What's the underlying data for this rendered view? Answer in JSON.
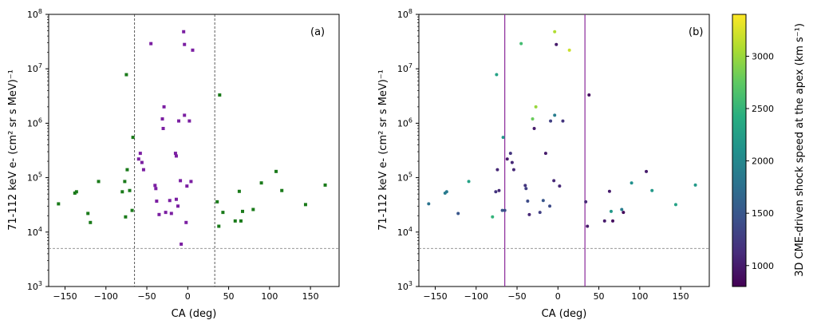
{
  "chart_data": [
    {
      "type": "scatter",
      "panel_label": "(a)",
      "xlabel": "CA (deg)",
      "ylabel": "71-112 keV e- (cm² sr s MeV)⁻¹",
      "xlim": [
        -170,
        185
      ],
      "ylim": [
        1000,
        100000000
      ],
      "yscale": "log",
      "xticks": [
        -150,
        -100,
        -50,
        0,
        50,
        100,
        150
      ],
      "yticks": [
        {
          "value": 1000,
          "base": "10",
          "exp": "3"
        },
        {
          "value": 10000,
          "base": "10",
          "exp": "4"
        },
        {
          "value": 100000,
          "base": "10",
          "exp": "5"
        },
        {
          "value": 1000000,
          "base": "10",
          "exp": "6"
        },
        {
          "value": 10000000,
          "base": "10",
          "exp": "7"
        },
        {
          "value": 100000000,
          "base": "10",
          "exp": "8"
        }
      ],
      "vlines": [
        -65,
        33
      ],
      "vline_style": "dashed",
      "vline_color": "#333333",
      "hline": 5000,
      "colors": {
        "outside": "#1a7a1a",
        "inside": "#7b1fa2"
      },
      "series": [
        {
          "group": "outside",
          "x": [
            -158,
            -138,
            -136,
            -122,
            -119,
            -109,
            -80,
            -77,
            -76,
            -75,
            -74,
            -71,
            -68,
            -67,
            36,
            38,
            39,
            43,
            58,
            63,
            65,
            67,
            80,
            90,
            108,
            115,
            144,
            168
          ],
          "y": [
            33000,
            52000,
            55000,
            22000,
            15000,
            85000,
            55000,
            85000,
            19000,
            7800000,
            140000,
            58000,
            25000,
            550000,
            36000,
            12800,
            3300000,
            23000,
            16000,
            56000,
            16000,
            24000,
            26000,
            80000,
            130000,
            58000,
            32000,
            73000
          ]
        },
        {
          "group": "inside",
          "x": [
            -60,
            -58,
            -56,
            -54,
            -45,
            -40,
            -39,
            -38,
            -35,
            -31,
            -30,
            -29,
            -27,
            -22,
            -20,
            -15,
            -14,
            -14,
            -12,
            -11,
            -9,
            -8,
            -5,
            -4,
            -4,
            -2,
            -1,
            2,
            4,
            6
          ],
          "y": [
            220000,
            280000,
            190000,
            140000,
            29000000,
            72000,
            63000,
            37000,
            21000,
            1200000,
            800000,
            2000000,
            23000,
            38000,
            22000,
            280000,
            250000,
            40000,
            30000,
            1100000,
            88000,
            6000,
            48000000,
            1400000,
            28000000,
            15000,
            70000,
            1100000,
            85000,
            22000000
          ]
        }
      ]
    },
    {
      "type": "scatter",
      "panel_label": "(b)",
      "xlabel": "CA (deg)",
      "ylabel": "71-112 keV e- (cm² sr s MeV)⁻¹",
      "xlim": [
        -170,
        185
      ],
      "ylim": [
        1000,
        100000000
      ],
      "yscale": "log",
      "xticks": [
        -150,
        -100,
        -50,
        0,
        50,
        100,
        150
      ],
      "yticks": [
        {
          "value": 1000,
          "base": "10",
          "exp": "3"
        },
        {
          "value": 10000,
          "base": "10",
          "exp": "4"
        },
        {
          "value": 100000,
          "base": "10",
          "exp": "5"
        },
        {
          "value": 1000000,
          "base": "10",
          "exp": "6"
        },
        {
          "value": 10000000,
          "base": "10",
          "exp": "7"
        },
        {
          "value": 100000000,
          "base": "10",
          "exp": "8"
        }
      ],
      "vlines": [
        -65,
        33
      ],
      "vline_style": "solid",
      "vline_color": "#8a2a9a",
      "hline": 5000,
      "colorbar": {
        "label": "3D CME-driven shock speed at the apex  (km s⁻¹)",
        "colormap": "viridis",
        "range": [
          800,
          3400
        ],
        "ticks": [
          1000,
          1500,
          2000,
          2500,
          3000
        ]
      },
      "points": {
        "x": [
          -158,
          -138,
          -136,
          -122,
          -109,
          -80,
          -76,
          -75,
          -74,
          -72,
          -68,
          -67,
          -65,
          -62,
          -58,
          -56,
          -54,
          -45,
          -40,
          -39,
          -37,
          -35,
          -31,
          -29,
          -27,
          -22,
          -18,
          -15,
          -10,
          -9,
          -5,
          -4,
          -4,
          -2,
          2,
          6,
          14,
          34,
          36,
          38,
          57,
          63,
          65,
          67,
          78,
          80,
          90,
          108,
          115,
          144,
          168
        ],
        "y": [
          33000,
          52000,
          55000,
          22000,
          85000,
          19000,
          55000,
          7800000,
          140000,
          58000,
          25000,
          550000,
          25000,
          220000,
          280000,
          190000,
          140000,
          29000000,
          72000,
          63000,
          37000,
          21000,
          1200000,
          800000,
          2000000,
          23000,
          38000,
          280000,
          30000,
          1100000,
          88000,
          48000000,
          1400000,
          28000000,
          70000,
          1100000,
          22000000,
          36000,
          12800,
          3300000,
          16000,
          56000,
          24000,
          16000,
          26000,
          23000,
          80000,
          130000,
          58000,
          32000,
          73000
        ],
        "speed": [
          1800,
          1900,
          1850,
          1500,
          2300,
          2500,
          1200,
          2300,
          1100,
          1100,
          1500,
          2200,
          1400,
          1000,
          1200,
          1100,
          1100,
          2600,
          1200,
          1300,
          1400,
          1100,
          2800,
          1000,
          3000,
          1300,
          1500,
          1000,
          1400,
          1300,
          1100,
          3100,
          1900,
          1000,
          1100,
          1200,
          3200,
          1100,
          1000,
          900,
          1000,
          1000,
          2200,
          900,
          1900,
          850,
          2100,
          1000,
          2200,
          2300,
          2200
        ]
      }
    }
  ]
}
